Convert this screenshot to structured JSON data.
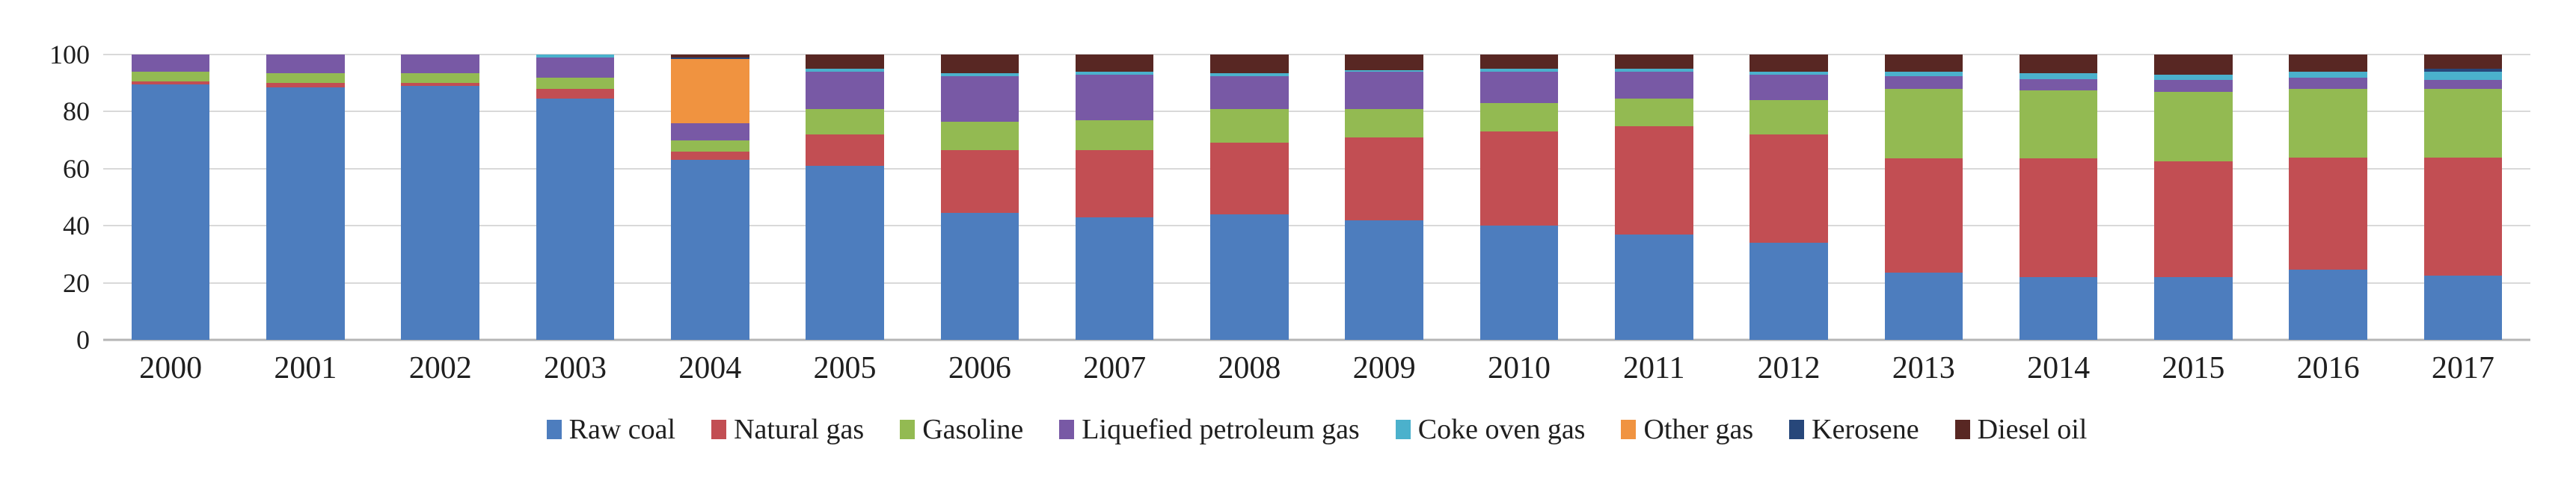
{
  "chart_data": {
    "type": "bar",
    "stacked": true,
    "categories": [
      "2000",
      "2001",
      "2002",
      "2003",
      "2004",
      "2005",
      "2006",
      "2007",
      "2008",
      "2009",
      "2010",
      "2011",
      "2012",
      "2013",
      "2014",
      "2015",
      "2016",
      "2017"
    ],
    "series": [
      {
        "name": "Raw coal",
        "color": "#4d7dbe",
        "values": [
          89.5,
          88.5,
          89,
          84.5,
          63,
          61,
          44.5,
          43,
          44,
          42,
          40,
          37,
          34,
          23.5,
          22,
          22,
          24.5,
          22.5
        ]
      },
      {
        "name": "Natural gas",
        "color": "#c24e53",
        "values": [
          1,
          1.5,
          1,
          3.5,
          3,
          11,
          22,
          23.5,
          25,
          29,
          33,
          38,
          38,
          40,
          41.5,
          40.5,
          39.5,
          41.5
        ]
      },
      {
        "name": "Gasoline",
        "color": "#93ba52",
        "values": [
          3.5,
          3.5,
          3.5,
          4,
          4,
          9,
          10,
          10.5,
          12,
          10,
          10,
          9.5,
          12,
          24.5,
          24,
          24.5,
          24,
          24
        ]
      },
      {
        "name": "Liquefied petroleum gas",
        "color": "#7859a5",
        "values": [
          6,
          6.5,
          6.5,
          7,
          6,
          13,
          16,
          16,
          11.5,
          13,
          11,
          9.5,
          9,
          4.5,
          4,
          4,
          4,
          3
        ]
      },
      {
        "name": "Coke oven gas",
        "color": "#4bb1cc",
        "values": [
          0,
          0,
          0,
          1,
          0,
          1,
          1,
          1,
          1,
          0.5,
          1,
          1,
          1,
          1.5,
          2,
          2,
          2,
          3
        ]
      },
      {
        "name": "Other gas",
        "color": "#f09340",
        "values": [
          0,
          0,
          0,
          0,
          22.5,
          0,
          0,
          0,
          0,
          0,
          0,
          0,
          0,
          0,
          0,
          0,
          0,
          0
        ]
      },
      {
        "name": "Kerosene",
        "color": "#27477a",
        "values": [
          0,
          0,
          0,
          0,
          0.5,
          0,
          0,
          0,
          0,
          0,
          0,
          0,
          0,
          0,
          0,
          0,
          0,
          1
        ]
      },
      {
        "name": "Diesel oil",
        "color": "#582723",
        "values": [
          0,
          0,
          0,
          0,
          1,
          5,
          6.5,
          6,
          6.5,
          5.5,
          5,
          5,
          6,
          6,
          6.5,
          7,
          6,
          5
        ]
      }
    ],
    "ylim": [
      0,
      100
    ],
    "yticks": [
      0,
      20,
      40,
      60,
      80,
      100
    ],
    "ytick_labels": [
      "0",
      "20",
      "40",
      "60",
      "80",
      "100"
    ],
    "grid": true,
    "grid_color": "#d9d9d9",
    "axis_line_color": "#b5b5b5",
    "label_color": "#1f1f1f",
    "legend_position": "bottom",
    "legend_entries": [
      "Raw coal",
      "Natural gas",
      "Gasoline",
      "Liquefied petroleum gas",
      "Coke oven gas",
      "Other gas",
      "Kerosene",
      "Diesel oil"
    ]
  }
}
